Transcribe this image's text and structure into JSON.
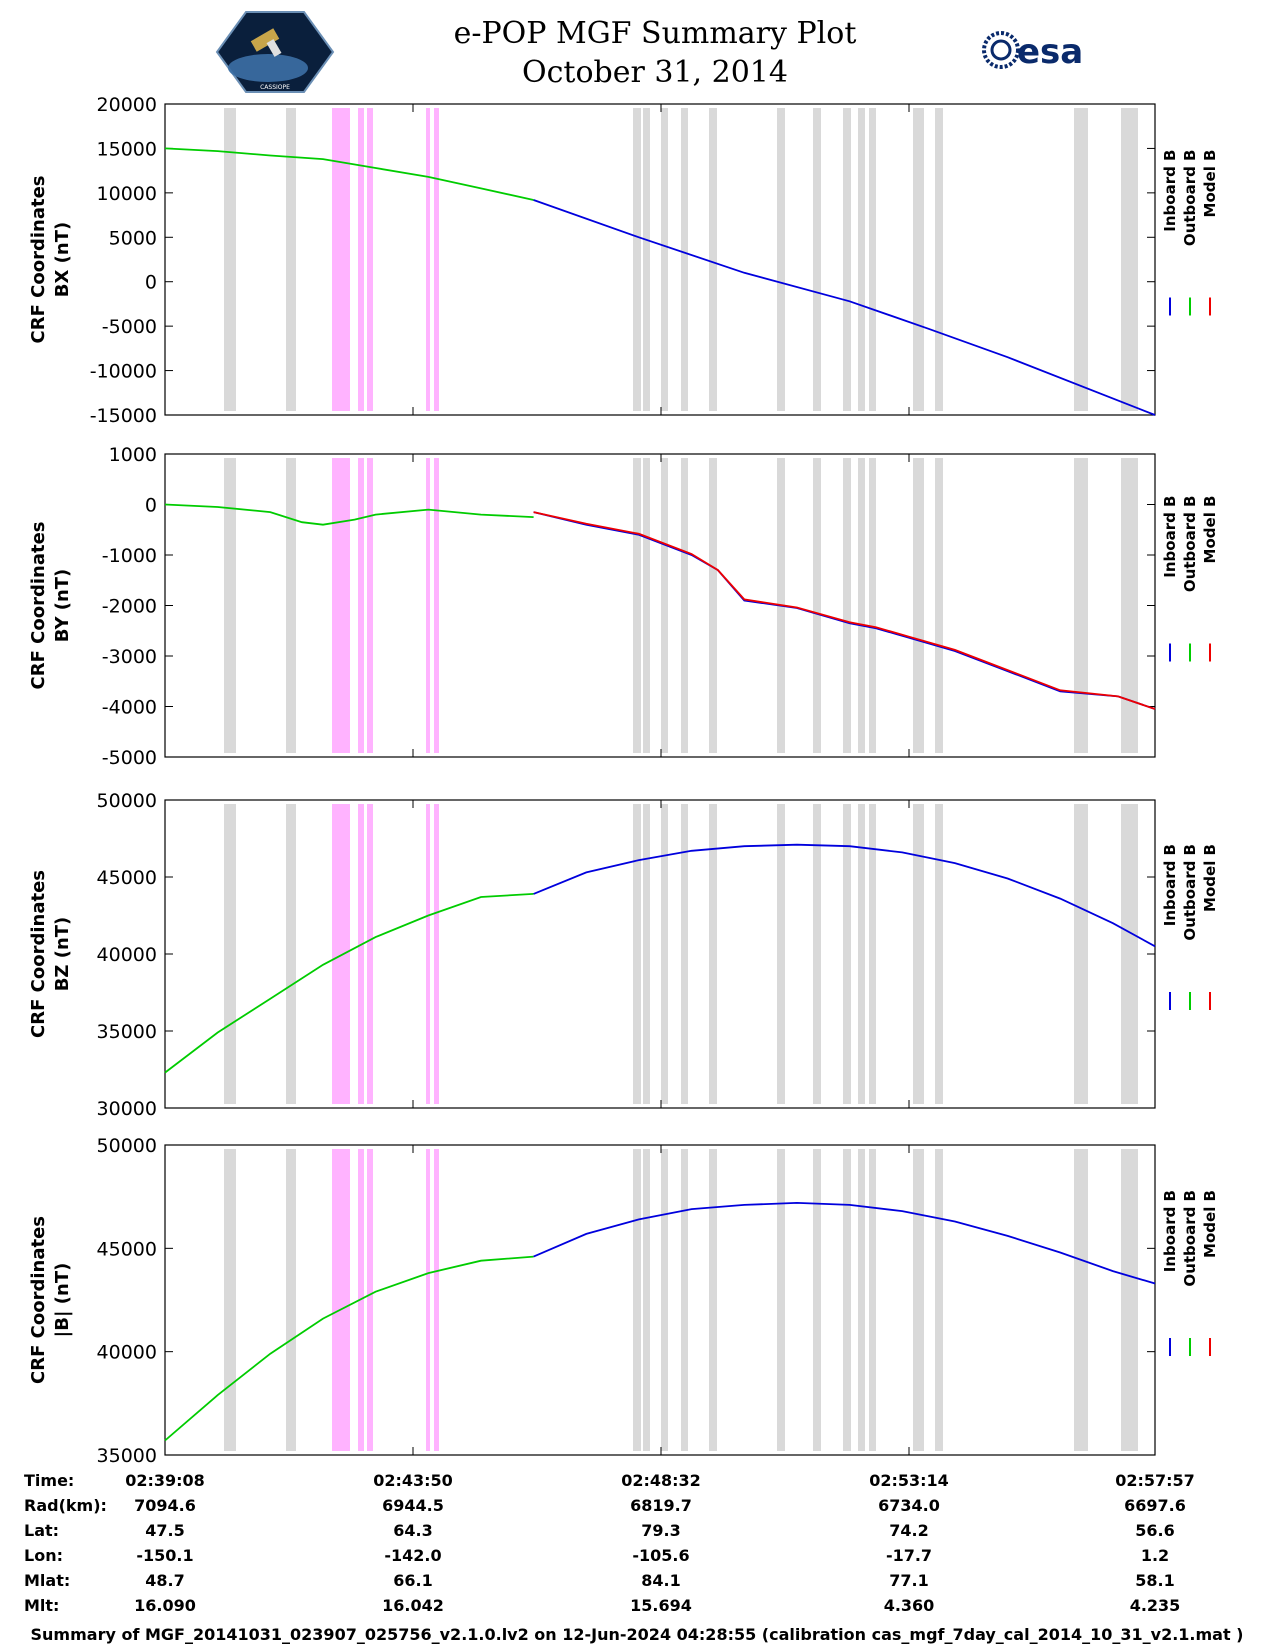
{
  "header": {
    "title_line1": "e-POP MGF Summary Plot",
    "title_line2": "October 31, 2014",
    "left_logo": "cassiope-mission-patch",
    "left_logo_text": "CASSIOPE",
    "right_logo_text": "esa"
  },
  "colors": {
    "inboard": "#0000dd",
    "outboard": "#00cc00",
    "model": "#ee0000",
    "gray_band": "#d9d9d9",
    "pink_band": "#ffb3ff"
  },
  "legend": [
    "Inboard B",
    "Outboard B",
    "Model B"
  ],
  "time_ticks": [
    "02:39:08",
    "02:43:50",
    "02:48:32",
    "02:53:14",
    "02:57:57"
  ],
  "info_table": {
    "row_labels": [
      "Time:",
      "Rad(km):",
      "Lat:",
      "Lon:",
      "Mlat:",
      "Mlt:"
    ],
    "columns": [
      [
        "02:39:08",
        "7094.6",
        "47.5",
        "-150.1",
        "48.7",
        "16.090"
      ],
      [
        "02:43:50",
        "6944.5",
        "64.3",
        "-142.0",
        "66.1",
        "16.042"
      ],
      [
        "02:48:32",
        "6819.7",
        "79.3",
        "-105.6",
        "84.1",
        "15.694"
      ],
      [
        "02:53:14",
        "6734.0",
        "74.2",
        "-17.7",
        "77.1",
        "4.360"
      ],
      [
        "02:57:57",
        "6697.6",
        "56.6",
        "1.2",
        "58.1",
        "4.235"
      ]
    ]
  },
  "footer": "Summary of MGF_20141031_023907_025756_v2.1.0.lv2 on 12-Jun-2024 04:28:55 (calibration cas_mgf_7day_cal_2014_10_31_v2.1.mat )",
  "chart_data": [
    {
      "type": "line",
      "ylabel": [
        "CRF Coordinates",
        "BX (nT)"
      ],
      "ylim": [
        -15000,
        20000
      ],
      "yticks": [
        20000,
        15000,
        10000,
        5000,
        0,
        -5000,
        -10000,
        -15000
      ],
      "x_unit": "minutes since 02:39:08",
      "xlim": [
        0,
        18.8
      ],
      "series": [
        {
          "name": "Outboard B",
          "x": [
            0,
            1,
            2,
            3,
            4,
            5,
            6,
            7
          ],
          "values": [
            15000,
            14700,
            14200,
            13800,
            12800,
            11800,
            10500,
            9200
          ]
        },
        {
          "name": "Inboard B",
          "x": [
            7,
            9,
            11,
            13,
            14.5,
            16,
            18.8
          ],
          "values": [
            9200,
            5000,
            1000,
            -2200,
            -5300,
            -8500,
            -15000
          ]
        }
      ]
    },
    {
      "type": "line",
      "ylabel": [
        "CRF Coordinates",
        "BY (nT)"
      ],
      "ylim": [
        -5000,
        1000
      ],
      "yticks": [
        1000,
        0,
        -1000,
        -2000,
        -3000,
        -4000,
        -5000
      ],
      "x_unit": "minutes since 02:39:08",
      "xlim": [
        0,
        18.8
      ],
      "series": [
        {
          "name": "Outboard B",
          "x": [
            0,
            1,
            2,
            2.6,
            3,
            3.6,
            4,
            5,
            6,
            7
          ],
          "values": [
            0,
            -50,
            -150,
            -350,
            -400,
            -300,
            -200,
            -100,
            -200,
            -250
          ]
        },
        {
          "name": "Inboard B",
          "x": [
            7,
            8,
            9,
            10,
            10.5,
            11,
            12,
            13,
            13.5,
            14,
            15,
            16,
            17,
            18.1,
            18.8
          ],
          "values": [
            -150,
            -400,
            -600,
            -1000,
            -1300,
            -1900,
            -2050,
            -2350,
            -2450,
            -2600,
            -2900,
            -3300,
            -3700,
            -3800,
            -4050
          ]
        },
        {
          "name": "Model B",
          "x": [
            7,
            8,
            9,
            10,
            10.5,
            11,
            12,
            13,
            13.5,
            14,
            15,
            16,
            17,
            18.1,
            18.8
          ],
          "values": [
            -150,
            -380,
            -580,
            -980,
            -1300,
            -1880,
            -2040,
            -2330,
            -2430,
            -2580,
            -2880,
            -3280,
            -3680,
            -3800,
            -4050
          ]
        }
      ]
    },
    {
      "type": "line",
      "ylabel": [
        "CRF Coordinates",
        "BZ (nT)"
      ],
      "ylim": [
        30000,
        50000
      ],
      "yticks": [
        50000,
        45000,
        40000,
        35000,
        30000
      ],
      "x_unit": "minutes since 02:39:08",
      "xlim": [
        0,
        18.8
      ],
      "series": [
        {
          "name": "Outboard B",
          "x": [
            0,
            1,
            2,
            3,
            4,
            5,
            6,
            7
          ],
          "values": [
            32300,
            34900,
            37100,
            39300,
            41100,
            42500,
            43700,
            43900
          ]
        },
        {
          "name": "Inboard B",
          "x": [
            7,
            8,
            9,
            10,
            11,
            12,
            13,
            14,
            15,
            16,
            17,
            18,
            18.8
          ],
          "values": [
            43900,
            45300,
            46100,
            46700,
            47000,
            47100,
            47000,
            46600,
            45900,
            44900,
            43600,
            42000,
            40500
          ]
        }
      ]
    },
    {
      "type": "line",
      "ylabel": [
        "CRF Coordinates",
        "|B| (nT)"
      ],
      "ylim": [
        35000,
        50000
      ],
      "yticks": [
        50000,
        45000,
        40000,
        35000
      ],
      "x_unit": "minutes since 02:39:08",
      "xlim": [
        0,
        18.8
      ],
      "series": [
        {
          "name": "Outboard B",
          "x": [
            0,
            1,
            2,
            3,
            4,
            5,
            6,
            7
          ],
          "values": [
            35700,
            37900,
            39900,
            41600,
            42900,
            43800,
            44400,
            44600
          ]
        },
        {
          "name": "Inboard B",
          "x": [
            7,
            8,
            9,
            10,
            11,
            12,
            13,
            14,
            15,
            16,
            17,
            18,
            18.8
          ],
          "values": [
            44600,
            45700,
            46400,
            46900,
            47100,
            47200,
            47100,
            46800,
            46300,
            45600,
            44800,
            43900,
            43300
          ]
        }
      ]
    }
  ]
}
